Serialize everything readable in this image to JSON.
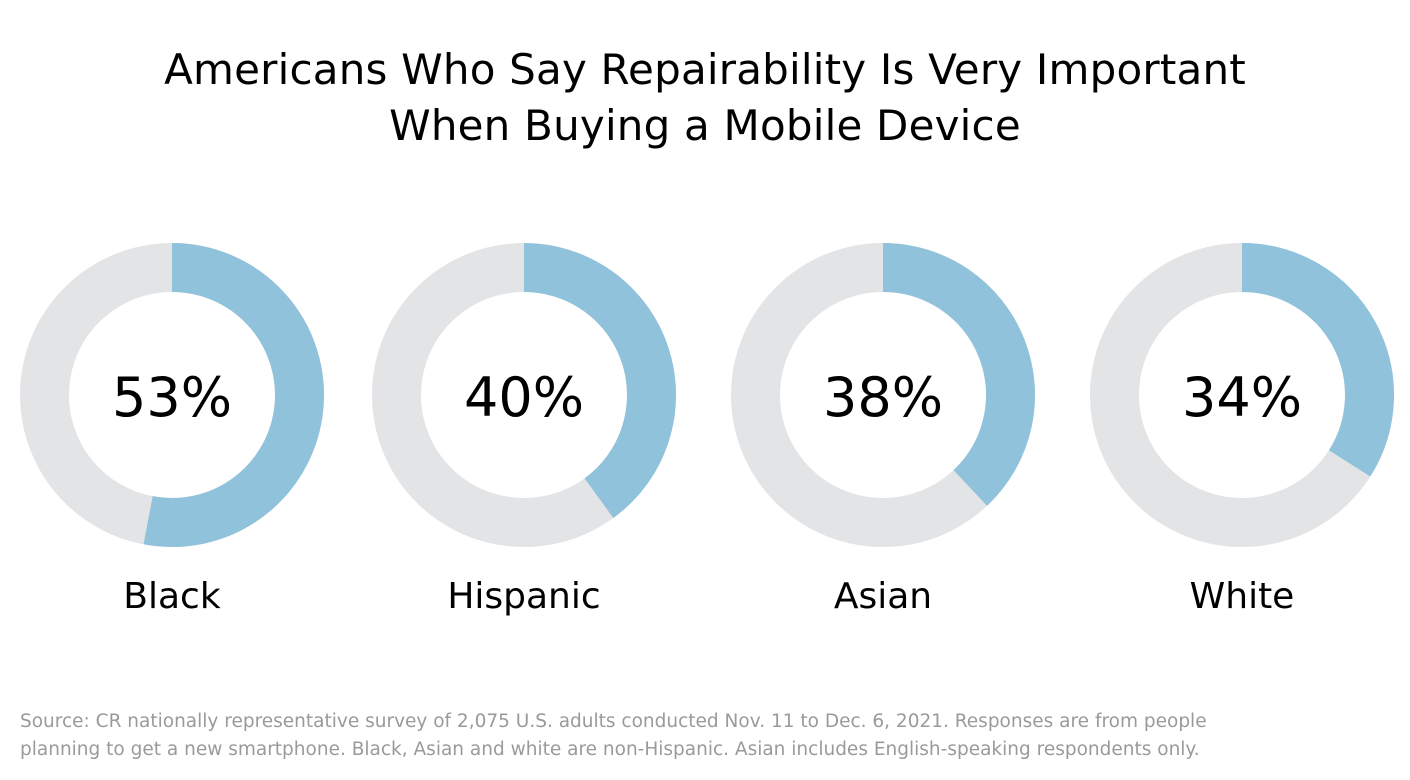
{
  "chart_data": {
    "type": "pie",
    "subtype": "donut-row",
    "title_lines": [
      "Americans Who Say Repairability Is Very Important",
      "When Buying a Mobile Device"
    ],
    "unit": "%",
    "categories": [
      "Black",
      "Hispanic",
      "Asian",
      "White"
    ],
    "values": [
      53,
      40,
      38,
      34
    ],
    "value_labels": [
      "53%",
      "40%",
      "38%",
      "34%"
    ],
    "colors": {
      "filled": "#90c2db",
      "remainder": "#e3e4e6"
    }
  },
  "footnote_lines": [
    "Source: CR nationally representative survey of 2,075 U.S. adults conducted Nov. 11 to Dec. 6, 2021. Responses are from people",
    "planning to get a new smartphone. Black, Asian and white are non-Hispanic. Asian includes English-speaking respondents only."
  ]
}
